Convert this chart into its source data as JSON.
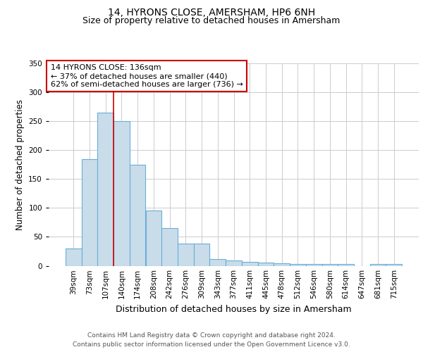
{
  "title": "14, HYRONS CLOSE, AMERSHAM, HP6 6NH",
  "subtitle": "Size of property relative to detached houses in Amersham",
  "xlabel": "Distribution of detached houses by size in Amersham",
  "ylabel": "Number of detached properties",
  "bar_labels": [
    "39sqm",
    "73sqm",
    "107sqm",
    "140sqm",
    "174sqm",
    "208sqm",
    "242sqm",
    "276sqm",
    "309sqm",
    "343sqm",
    "377sqm",
    "411sqm",
    "445sqm",
    "478sqm",
    "512sqm",
    "546sqm",
    "580sqm",
    "614sqm",
    "647sqm",
    "681sqm",
    "715sqm"
  ],
  "bar_values": [
    30,
    185,
    265,
    250,
    175,
    95,
    65,
    38,
    38,
    12,
    9,
    7,
    5,
    4,
    3,
    3,
    3,
    3,
    0,
    3,
    3
  ],
  "bar_color": "#c9dcea",
  "bar_edge_color": "#6aaed6",
  "bar_edge_width": 0.8,
  "grid_color": "#cccccc",
  "background_color": "#ffffff",
  "annotation_text": "14 HYRONS CLOSE: 136sqm\n← 37% of detached houses are smaller (440)\n62% of semi-detached houses are larger (736) →",
  "annotation_box_color": "#ffffff",
  "annotation_box_edge_color": "#cc0000",
  "red_line_x": 2.5,
  "ylim": [
    0,
    350
  ],
  "yticks": [
    0,
    50,
    100,
    150,
    200,
    250,
    300,
    350
  ],
  "footer_text": "Contains HM Land Registry data © Crown copyright and database right 2024.\nContains public sector information licensed under the Open Government Licence v3.0.",
  "title_fontsize": 10,
  "subtitle_fontsize": 9,
  "xlabel_fontsize": 9,
  "ylabel_fontsize": 8.5,
  "tick_fontsize": 7.5,
  "annotation_fontsize": 8,
  "footer_fontsize": 6.5
}
